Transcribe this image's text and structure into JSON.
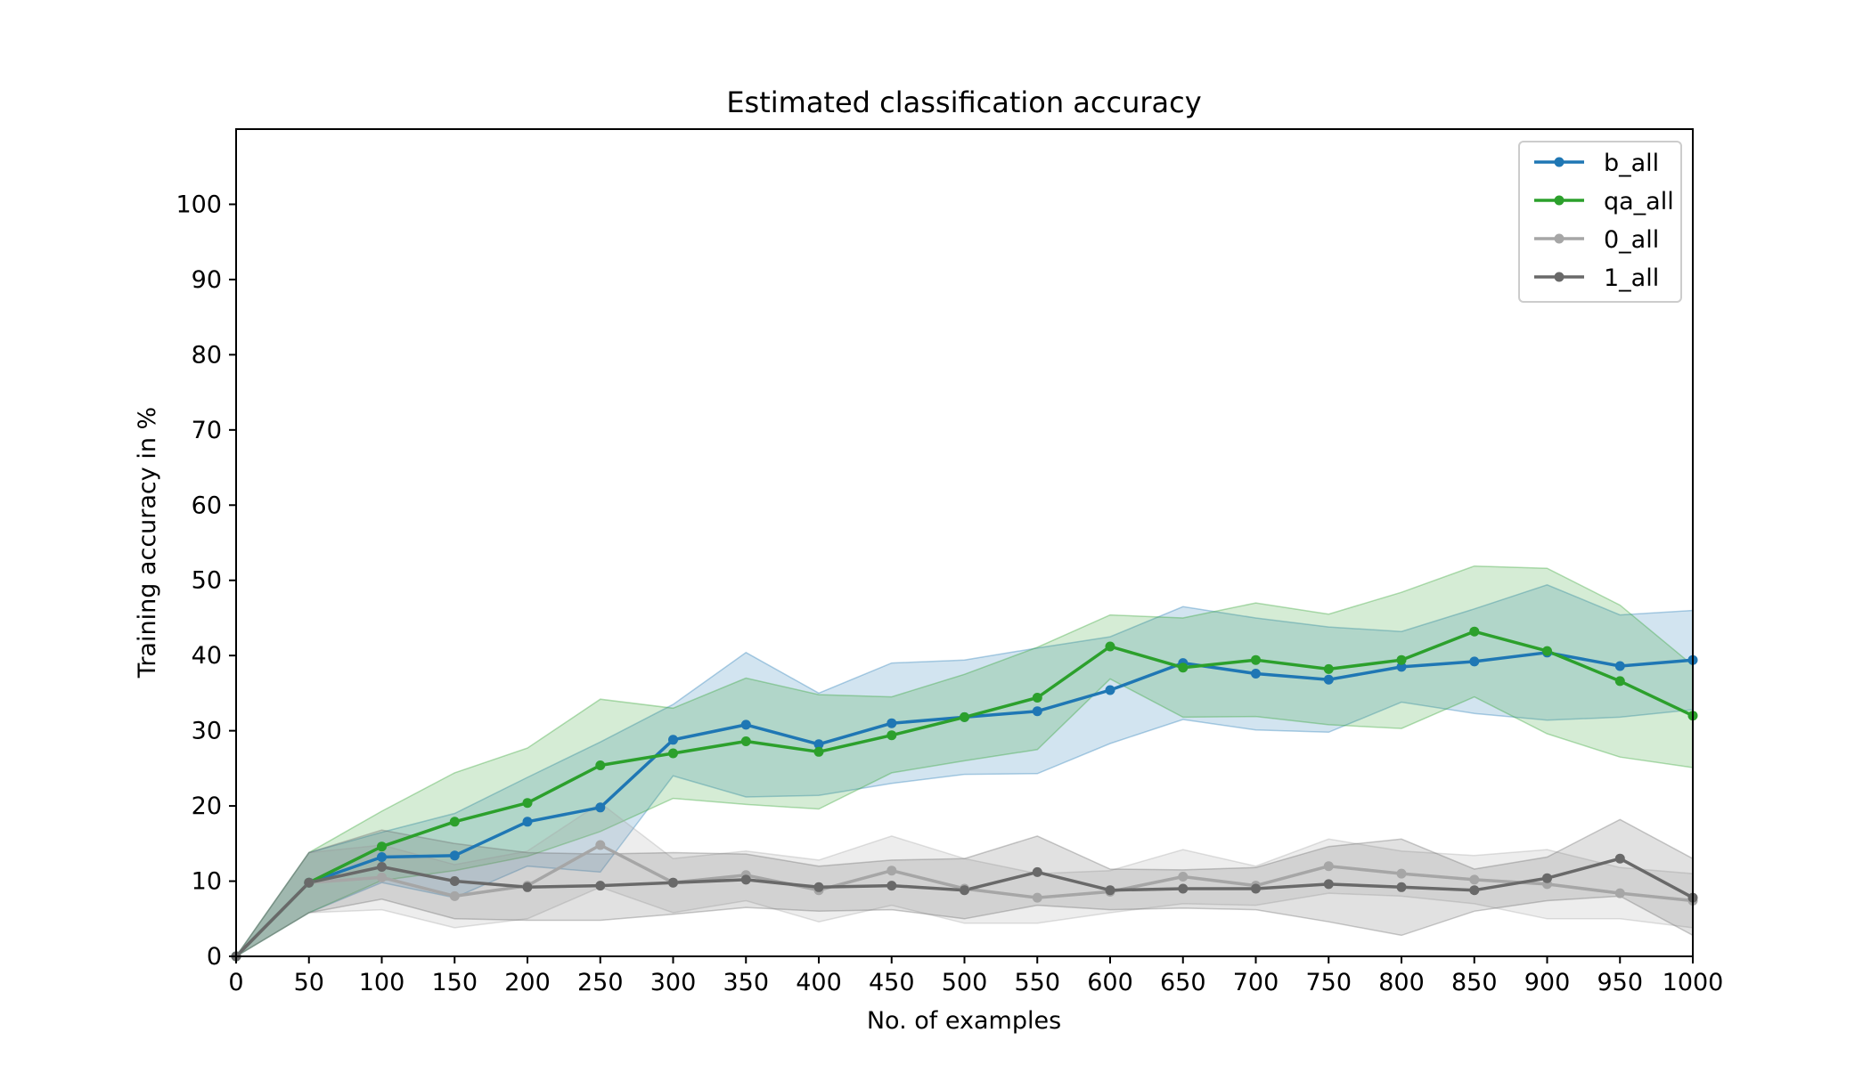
{
  "chart_data": {
    "type": "line",
    "title": "Estimated classification accuracy",
    "xlabel": "No. of examples",
    "ylabel": "Training accuracy in %",
    "xlim": [
      0,
      1000
    ],
    "ylim": [
      0,
      110
    ],
    "x_ticks": [
      0,
      50,
      100,
      150,
      200,
      250,
      300,
      350,
      400,
      450,
      500,
      550,
      600,
      650,
      700,
      750,
      800,
      850,
      900,
      950,
      1000
    ],
    "y_ticks": [
      0,
      10,
      20,
      30,
      40,
      50,
      60,
      70,
      80,
      90,
      100
    ],
    "grid": false,
    "legend_position": "top-right",
    "x": [
      0,
      50,
      100,
      150,
      200,
      250,
      300,
      350,
      400,
      450,
      500,
      550,
      600,
      650,
      700,
      750,
      800,
      850,
      900,
      950,
      1000
    ],
    "series": [
      {
        "name": "b_all",
        "color": "#1f77b4",
        "band_opacity": 0.2,
        "values": [
          0,
          9.8,
          13.2,
          13.4,
          17.9,
          19.8,
          28.8,
          30.8,
          28.2,
          31.0,
          31.8,
          32.6,
          35.4,
          39.0,
          37.6,
          36.8,
          38.5,
          39.2,
          40.4,
          38.6,
          39.4
        ],
        "upper": [
          0,
          13.8,
          16.5,
          19.0,
          23.8,
          28.5,
          33.5,
          40.4,
          35.0,
          39.0,
          39.4,
          41.0,
          42.5,
          46.5,
          45.0,
          43.8,
          43.2,
          46.2,
          49.4,
          45.4,
          46.0
        ],
        "lower": [
          0,
          5.8,
          9.8,
          7.8,
          12.0,
          11.2,
          24.0,
          21.2,
          21.4,
          23.0,
          24.2,
          24.3,
          28.3,
          31.5,
          30.1,
          29.8,
          33.8,
          32.3,
          31.4,
          31.8,
          32.8
        ]
      },
      {
        "name": "qa_all",
        "color": "#2ca02c",
        "band_opacity": 0.2,
        "values": [
          0,
          9.8,
          14.6,
          17.9,
          20.4,
          25.4,
          27.0,
          28.6,
          27.2,
          29.4,
          31.8,
          34.4,
          41.2,
          38.4,
          39.4,
          38.2,
          39.4,
          43.2,
          40.6,
          36.6,
          32.0
        ],
        "upper": [
          0,
          13.8,
          19.3,
          24.4,
          27.7,
          34.2,
          33.0,
          37.0,
          34.8,
          34.5,
          37.5,
          41.1,
          45.4,
          45.0,
          47.0,
          45.5,
          48.4,
          51.9,
          51.6,
          46.7,
          38.7
        ],
        "lower": [
          0,
          5.8,
          10.1,
          11.4,
          13.3,
          16.6,
          21.0,
          20.2,
          19.6,
          24.4,
          26.0,
          27.5,
          36.9,
          31.8,
          31.9,
          30.8,
          30.3,
          34.5,
          29.6,
          26.5,
          25.1
        ]
      },
      {
        "name": "0_all",
        "color": "#a6a6a6",
        "band_opacity": 0.2,
        "values": [
          0,
          9.8,
          10.5,
          8.0,
          9.4,
          14.8,
          9.8,
          10.8,
          8.8,
          11.4,
          9.0,
          7.8,
          8.6,
          10.6,
          9.4,
          12.0,
          11.0,
          10.2,
          9.6,
          8.4,
          7.4
        ],
        "upper": [
          0,
          13.8,
          14.8,
          12.2,
          14.0,
          20.4,
          13.0,
          14.0,
          12.8,
          16.0,
          13.0,
          11.0,
          11.4,
          14.2,
          12.0,
          15.6,
          14.0,
          13.4,
          14.2,
          11.8,
          11.0
        ],
        "lower": [
          0,
          5.8,
          6.2,
          3.8,
          5.0,
          9.2,
          5.8,
          7.4,
          4.6,
          6.8,
          4.4,
          4.4,
          5.8,
          7.0,
          6.8,
          8.4,
          8.0,
          7.0,
          5.0,
          5.0,
          3.8
        ]
      },
      {
        "name": "1_all",
        "color": "#696969",
        "band_opacity": 0.2,
        "values": [
          0,
          9.8,
          11.9,
          10.0,
          9.2,
          9.4,
          9.8,
          10.2,
          9.2,
          9.4,
          8.8,
          11.2,
          8.8,
          9.0,
          9.0,
          9.6,
          9.2,
          8.8,
          10.4,
          13.0,
          7.8
        ],
        "upper": [
          0,
          13.8,
          16.8,
          15.0,
          13.8,
          13.6,
          13.8,
          13.6,
          12.0,
          12.8,
          13.0,
          16.0,
          11.6,
          11.5,
          11.8,
          14.6,
          15.6,
          11.6,
          13.2,
          18.2,
          13.0
        ],
        "lower": [
          0,
          5.8,
          7.6,
          5.0,
          4.8,
          4.8,
          5.6,
          6.5,
          6.0,
          6.2,
          5.0,
          6.8,
          6.2,
          6.4,
          6.2,
          4.6,
          2.8,
          6.0,
          7.4,
          8.0,
          2.8
        ]
      }
    ]
  }
}
